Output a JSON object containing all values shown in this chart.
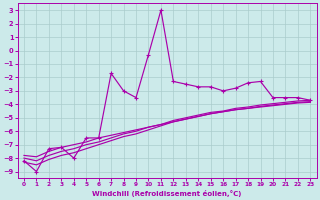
{
  "xlabel": "Windchill (Refroidissement éolien,°C)",
  "background_color": "#cceaea",
  "line_color": "#aa00aa",
  "grid_color": "#aacccc",
  "xlim": [
    -0.5,
    23.5
  ],
  "ylim": [
    -9.5,
    3.5
  ],
  "xticks": [
    0,
    1,
    2,
    3,
    4,
    5,
    6,
    7,
    8,
    9,
    10,
    11,
    12,
    13,
    14,
    15,
    16,
    17,
    18,
    19,
    20,
    21,
    22,
    23
  ],
  "yticks": [
    3,
    2,
    1,
    0,
    -1,
    -2,
    -3,
    -4,
    -5,
    -6,
    -7,
    -8,
    -9
  ],
  "zigzag_x": [
    0,
    1,
    2,
    3,
    4,
    5,
    6,
    7,
    8,
    9,
    10,
    11,
    12,
    13,
    14,
    15,
    16,
    17,
    18,
    19,
    20,
    21,
    22,
    23
  ],
  "zigzag_y": [
    -8.2,
    -9.0,
    -7.3,
    -7.2,
    -8.0,
    -6.5,
    -6.5,
    -1.7,
    -3.0,
    -3.5,
    -0.3,
    3.0,
    -2.3,
    -2.5,
    -2.7,
    -2.7,
    -3.0,
    -2.8,
    -2.4,
    -2.3,
    -3.5,
    -3.5,
    -3.5,
    -3.7
  ],
  "smooth1_x": [
    0,
    1,
    2,
    3,
    4,
    5,
    6,
    7,
    8,
    9,
    10,
    11,
    12,
    13,
    14,
    15,
    16,
    17,
    18,
    19,
    20,
    21,
    22,
    23
  ],
  "smooth1_y": [
    -7.8,
    -7.9,
    -7.5,
    -7.2,
    -7.0,
    -6.8,
    -6.5,
    -6.3,
    -6.1,
    -5.9,
    -5.7,
    -5.5,
    -5.3,
    -5.1,
    -4.9,
    -4.7,
    -4.55,
    -4.4,
    -4.3,
    -4.2,
    -4.1,
    -4.0,
    -3.9,
    -3.85
  ],
  "smooth2_x": [
    0,
    1,
    2,
    3,
    4,
    5,
    6,
    7,
    8,
    9,
    10,
    11,
    12,
    13,
    14,
    15,
    16,
    17,
    18,
    19,
    20,
    21,
    22,
    23
  ],
  "smooth2_y": [
    -8.0,
    -8.2,
    -7.8,
    -7.5,
    -7.3,
    -7.0,
    -6.8,
    -6.5,
    -6.2,
    -6.0,
    -5.7,
    -5.5,
    -5.2,
    -5.0,
    -4.8,
    -4.6,
    -4.5,
    -4.3,
    -4.2,
    -4.05,
    -3.95,
    -3.85,
    -3.75,
    -3.7
  ],
  "smooth3_x": [
    0,
    1,
    2,
    3,
    4,
    5,
    6,
    7,
    8,
    9,
    10,
    11,
    12,
    13,
    14,
    15,
    16,
    17,
    18,
    19,
    20,
    21,
    22,
    23
  ],
  "smooth3_y": [
    -8.3,
    -8.5,
    -8.1,
    -7.8,
    -7.6,
    -7.3,
    -7.0,
    -6.7,
    -6.4,
    -6.2,
    -5.9,
    -5.6,
    -5.3,
    -5.1,
    -4.9,
    -4.7,
    -4.55,
    -4.4,
    -4.3,
    -4.15,
    -4.05,
    -3.95,
    -3.85,
    -3.8
  ]
}
